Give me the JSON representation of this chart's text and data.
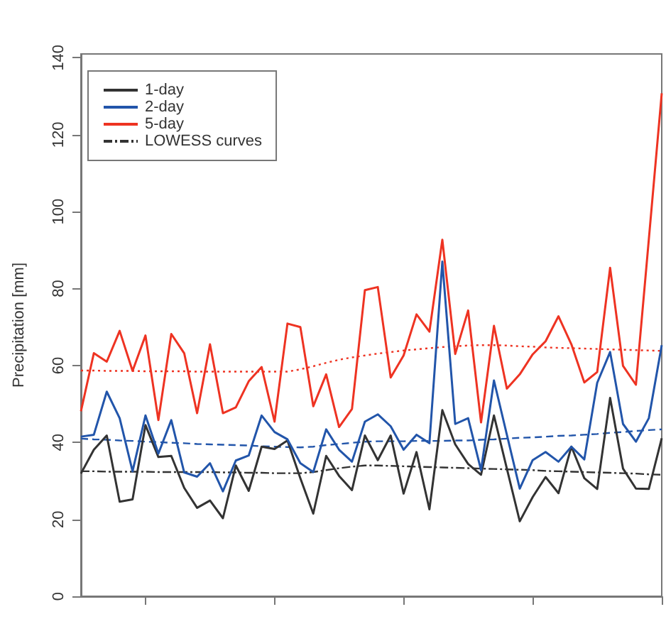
{
  "chart_data": {
    "type": "line",
    "ylabel": "Precipitation [mm]",
    "categories": [
      null,
      null,
      null,
      null,
      null,
      null,
      null,
      null,
      null,
      null,
      null,
      null,
      null,
      null,
      null,
      null,
      null,
      null,
      null,
      null,
      null,
      null,
      null,
      null,
      null,
      null,
      null,
      null,
      null,
      null,
      null,
      null,
      null,
      null,
      null,
      null,
      null,
      null,
      null,
      null,
      null,
      null,
      null,
      null,
      null,
      null
    ],
    "series": [
      {
        "name": "1-day",
        "color": "#333333",
        "line_style": "solid",
        "values": [
          31.9,
          38.1,
          41.8,
          24.6,
          25.2,
          44.5,
          36.2,
          36.5,
          28.2,
          23.0,
          24.9,
          20.3,
          34.0,
          27.4,
          38.9,
          38.3,
          40.5,
          30.7,
          21.5,
          36.5,
          31.3,
          27.6,
          41.8,
          35.4,
          41.8,
          26.7,
          37.5,
          22.6,
          48.4,
          39.5,
          34.4,
          31.6,
          47.0,
          33.2,
          19.5,
          25.8,
          31.0,
          26.8,
          38.9,
          30.7,
          27.9,
          51.6,
          33.2,
          28.0,
          27.9,
          41.1
        ]
      },
      {
        "name": "2-day",
        "color": "#2255aa",
        "line_style": "solid",
        "values": [
          41.5,
          42.0,
          53.2,
          46.3,
          32.5,
          47.0,
          37.1,
          45.8,
          32.2,
          31.1,
          34.6,
          27.3,
          35.3,
          36.6,
          47.0,
          42.7,
          40.8,
          34.6,
          32.3,
          43.4,
          38.1,
          35.0,
          45.4,
          47.3,
          44.2,
          38.1,
          42.0,
          39.8,
          87.0,
          44.8,
          46.3,
          32.8,
          56.1,
          42.0,
          28.0,
          35.4,
          37.5,
          35.0,
          38.9,
          35.6,
          55.5,
          63.5,
          44.8,
          40.2,
          46.3,
          65.3
        ]
      },
      {
        "name": "5-day",
        "color": "#ee3322",
        "line_style": "solid",
        "values": [
          48.1,
          63.2,
          61.0,
          69.0,
          58.6,
          67.8,
          45.8,
          68.2,
          63.2,
          47.6,
          65.5,
          47.6,
          49.1,
          55.9,
          59.6,
          45.4,
          70.9,
          70.0,
          49.4,
          57.7,
          44.0,
          48.7,
          79.6,
          80.4,
          56.9,
          62.6,
          73.3,
          68.8,
          92.7,
          63.0,
          74.3,
          45.2,
          70.3,
          54.0,
          57.7,
          62.9,
          66.3,
          72.8,
          65.5,
          55.6,
          58.3,
          85.4,
          59.9,
          55.0,
          92.8,
          130.8
        ]
      },
      {
        "name": "LOWESS curves",
        "color": "#333333",
        "line_style": "dashdot",
        "values": [
          32.5,
          32.5,
          32.4,
          32.4,
          32.4,
          32.4,
          32.3,
          32.3,
          32.3,
          32.3,
          32.3,
          32.2,
          32.2,
          32.1,
          32.1,
          32.0,
          32.0,
          32.0,
          32.3,
          32.8,
          33.3,
          33.7,
          34.0,
          34.0,
          33.9,
          33.8,
          33.7,
          33.6,
          33.5,
          33.4,
          33.3,
          33.2,
          33.1,
          33.0,
          32.9,
          32.8,
          32.6,
          32.5,
          32.4,
          32.3,
          32.2,
          32.1,
          32.0,
          31.9,
          31.7,
          31.6
        ]
      },
      {
        "color": "#2255aa",
        "line_style": "dashed",
        "values": [
          41.0,
          40.8,
          40.7,
          40.5,
          40.4,
          40.2,
          40.1,
          39.9,
          39.8,
          39.6,
          39.5,
          39.4,
          39.3,
          39.2,
          39.0,
          38.9,
          38.8,
          38.7,
          38.9,
          39.3,
          39.6,
          39.9,
          40.2,
          40.3,
          40.3,
          40.3,
          40.4,
          40.4,
          40.4,
          40.5,
          40.5,
          40.7,
          40.8,
          41.0,
          41.2,
          41.3,
          41.5,
          41.7,
          41.8,
          42.0,
          42.2,
          42.5,
          42.7,
          43.0,
          43.2,
          43.4
        ]
      },
      {
        "color": "#ee3322",
        "line_style": "dotted",
        "values": [
          58.7,
          58.7,
          58.6,
          58.6,
          58.6,
          58.5,
          58.5,
          58.5,
          58.5,
          58.4,
          58.4,
          58.4,
          58.4,
          58.4,
          58.4,
          58.4,
          58.4,
          59.0,
          59.8,
          60.7,
          61.5,
          62.1,
          62.6,
          63.1,
          63.5,
          63.9,
          64.2,
          64.5,
          64.8,
          65.0,
          65.2,
          65.3,
          65.3,
          65.2,
          65.0,
          64.9,
          64.7,
          64.6,
          64.5,
          64.4,
          64.3,
          64.2,
          64.1,
          64.0,
          63.9,
          63.8
        ]
      }
    ],
    "ylim": [
      0,
      141
    ],
    "yticks": [
      0,
      20,
      40,
      60,
      80,
      100,
      120,
      140
    ],
    "grid": false,
    "legend": "top left",
    "tick_labels": "y"
  }
}
